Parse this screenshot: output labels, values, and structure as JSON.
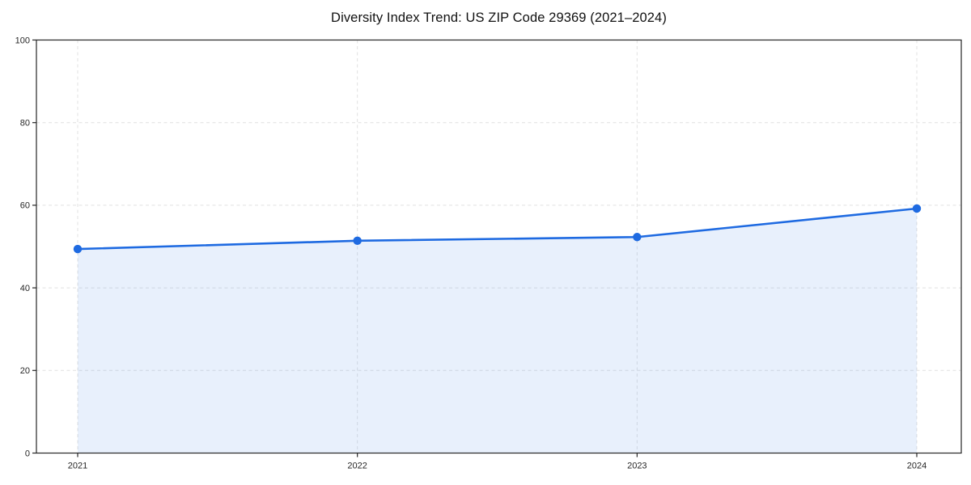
{
  "chart_data": {
    "type": "area",
    "title": "Diversity Index Trend: US ZIP Code 29369 (2021–2024)",
    "categories": [
      "2021",
      "2022",
      "2023",
      "2024"
    ],
    "series": [
      {
        "name": "Diversity Index",
        "values": [
          49.4,
          51.4,
          52.3,
          59.2
        ]
      }
    ],
    "xlabel": "",
    "ylabel": "",
    "ylim": [
      0,
      100
    ],
    "yticks": [
      0,
      20,
      40,
      60,
      80,
      100
    ],
    "grid": "dashed-both-axes",
    "legend_position": "none",
    "colors": {
      "line": "#1e6ae1",
      "marker": "#1e6ae1",
      "fill": "rgba(30,106,225,0.10)",
      "grid": "#e1e1e1",
      "spine": "#262626",
      "tick_label": "#262626",
      "title": "#111111",
      "background": "#ffffff"
    }
  }
}
